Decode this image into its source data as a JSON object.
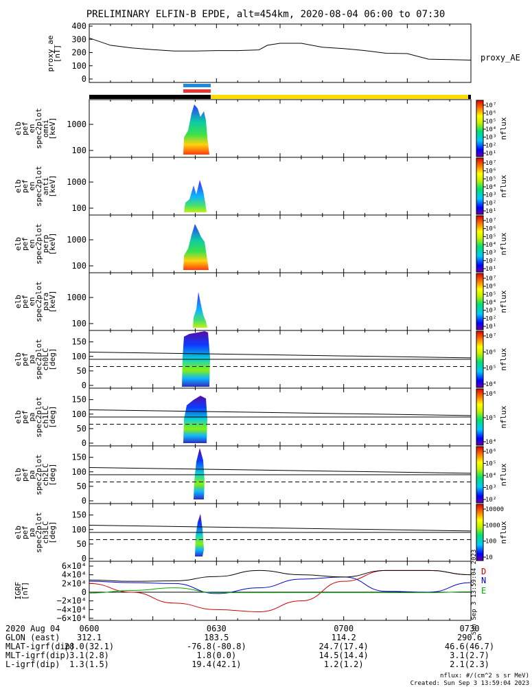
{
  "title": "PRELIMINARY ELFIN-B EPDE, alt=454km, 2020-08-04 06:00 to 07:30",
  "ae_panel": {
    "ylabel": [
      "proxy_ae",
      "[nT]"
    ],
    "yticks": [
      "400",
      "300",
      "200",
      "100",
      "0"
    ],
    "series_label": "proxy_AE"
  },
  "spec_panels": [
    {
      "ylabel": [
        "elb",
        "pef",
        "en",
        "spec2plot",
        "omni",
        "[keV]"
      ],
      "yticks": [
        "1000",
        "100"
      ],
      "cbar_ticks": [
        "10⁷",
        "10⁶",
        "10⁵",
        "10⁴",
        "10³",
        "10²",
        "10¹"
      ],
      "cbar_label": "nflux"
    },
    {
      "ylabel": [
        "elb",
        "pef",
        "en",
        "spec2plot",
        "anti",
        "[keV]"
      ],
      "yticks": [
        "1000",
        "100"
      ],
      "cbar_ticks": [
        "10⁷",
        "10⁶",
        "10⁵",
        "10⁴",
        "10³",
        "10²",
        "10¹"
      ],
      "cbar_label": "nflux"
    },
    {
      "ylabel": [
        "elb",
        "pef",
        "en",
        "spec2plot",
        "perp",
        "[keV]"
      ],
      "yticks": [
        "1000",
        "100"
      ],
      "cbar_ticks": [
        "10⁷",
        "10⁶",
        "10⁵",
        "10⁴",
        "10³",
        "10²",
        "10¹"
      ],
      "cbar_label": "nflux"
    },
    {
      "ylabel": [
        "elb",
        "pef",
        "en",
        "spec2plot",
        "para",
        "[keV]"
      ],
      "yticks": [
        "1000",
        "100"
      ],
      "cbar_ticks": [
        "10⁷",
        "10⁶",
        "10⁵",
        "10⁴",
        "10³",
        "10²",
        "10¹"
      ],
      "cbar_label": "nflux"
    }
  ],
  "pa_panels": [
    {
      "ylabel": [
        "elb",
        "pef",
        "pa",
        "spec2plot",
        "ch0LC",
        "[deg]"
      ],
      "yticks": [
        "150",
        "100",
        "50",
        "0"
      ],
      "cbar_ticks": [
        "10⁷",
        "10⁶",
        "10⁵",
        "10⁴"
      ],
      "cbar_label": "nflux"
    },
    {
      "ylabel": [
        "elb",
        "pef",
        "pa",
        "spec2plot",
        "ch1LC",
        "[deg]"
      ],
      "yticks": [
        "150",
        "100",
        "50",
        "0"
      ],
      "cbar_ticks": [
        "10⁶",
        "10⁵",
        "10⁴"
      ],
      "cbar_label": "nflux"
    },
    {
      "ylabel": [
        "elb",
        "pef",
        "pa",
        "spec2plot",
        "ch2LC",
        "[deg]"
      ],
      "yticks": [
        "150",
        "100",
        "50",
        "0"
      ],
      "cbar_ticks": [
        "10⁶",
        "10⁵",
        "10⁴",
        "10³",
        "10²"
      ],
      "cbar_label": "nflux"
    },
    {
      "ylabel": [
        "elb",
        "pef",
        "pa",
        "spec2plot",
        "ch3LC",
        "[deg]"
      ],
      "yticks": [
        "150",
        "100",
        "50",
        "0"
      ],
      "cbar_ticks": [
        "10000",
        "1000",
        "100",
        "10"
      ],
      "cbar_label": "nflux"
    }
  ],
  "igrf_panel": {
    "ylabel": [
      "IGRF",
      "[nT]"
    ],
    "yticks": [
      "6×10⁴",
      "4×10⁴",
      "2×10⁴",
      "0",
      "−2×10⁴",
      "−4×10⁴",
      "−6×10⁴"
    ],
    "labels": [
      "D",
      "N",
      "E"
    ],
    "side_text": "Sun Sep  3 13:59:04 2023"
  },
  "footer": {
    "rows": [
      [
        "2020 Aug 04",
        "0600",
        "0630",
        "0700",
        "0730"
      ],
      [
        "GLON (east)",
        "312.1",
        "183.5",
        "114.2",
        "290.6"
      ],
      [
        "MLAT-igrf(dip)",
        "28.0(32.1)",
        "-76.8(-80.8)",
        "24.7(17.4)",
        "46.6(46.7)"
      ],
      [
        "MLT-igrf(dip)",
        "3.1(2.8)",
        "1.8(0.0)",
        "14.5(14.4)",
        "3.1(2.7)"
      ],
      [
        "L-igrf(dip)",
        "1.3(1.5)",
        "19.4(42.1)",
        "1.2(1.2)",
        "2.1(2.3)"
      ]
    ],
    "units_note": "nflux: #/(cm^2 s sr MeV)",
    "created": "Created: Sun Sep  3 13:59:04 2023"
  },
  "colors": {
    "D": "#cc0000",
    "N": "#0000cc",
    "E": "#00aa00",
    "total": "#000000",
    "bar_black": "#000000",
    "bar_yellow": "#ffdd00",
    "bar_blue": "#1e88e5",
    "bar_red": "#e53935"
  },
  "chart_data": [
    {
      "type": "line",
      "name": "proxy_AE",
      "unit": "nT",
      "x": [
        "06:00",
        "06:05",
        "06:10",
        "06:15",
        "06:20",
        "06:25",
        "06:30",
        "06:35",
        "06:40",
        "06:42",
        "06:45",
        "06:50",
        "06:55",
        "07:00",
        "07:05",
        "07:10",
        "07:15",
        "07:20",
        "07:25",
        "07:30"
      ],
      "values": [
        310,
        255,
        235,
        222,
        212,
        212,
        215,
        215,
        220,
        255,
        270,
        270,
        240,
        230,
        215,
        195,
        192,
        150,
        147,
        143
      ],
      "ylim": [
        0,
        400
      ]
    },
    {
      "type": "line",
      "name": "IGRF",
      "unit": "nT",
      "x": [
        "06:00",
        "06:10",
        "06:20",
        "06:30",
        "06:40",
        "06:50",
        "07:00",
        "07:10",
        "07:20",
        "07:30"
      ],
      "series": [
        {
          "name": "D",
          "values": [
            20000,
            0,
            -25000,
            -40000,
            -45000,
            -20000,
            25000,
            50000,
            50000,
            40000
          ]
        },
        {
          "name": "N",
          "values": [
            25000,
            22000,
            20000,
            -3000,
            10000,
            30000,
            35000,
            2000,
            0,
            22000
          ]
        },
        {
          "name": "E",
          "values": [
            -2000,
            4000,
            10000,
            -1000,
            -1000,
            -1000,
            -1000,
            -1000,
            -1000,
            1000
          ]
        },
        {
          "name": "total",
          "values": [
            28000,
            25000,
            26000,
            36000,
            50000,
            40000,
            35000,
            50000,
            50000,
            40000
          ]
        }
      ],
      "ylim": [
        -60000,
        60000
      ]
    }
  ]
}
